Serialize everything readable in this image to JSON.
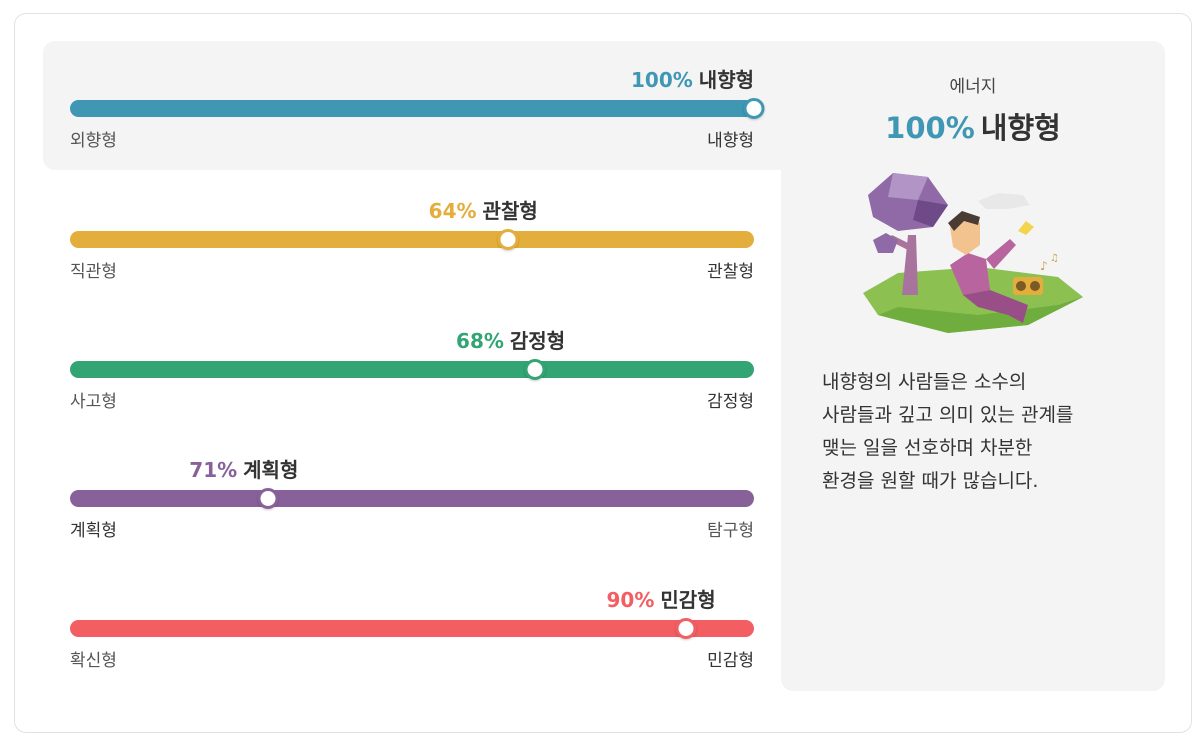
{
  "traits": [
    {
      "percent": "100%",
      "result": "내향형",
      "left": "외향형",
      "right": "내향형",
      "value": 100,
      "side": "right",
      "color": "#3f97b3"
    },
    {
      "percent": "64%",
      "result": "관찰형",
      "left": "직관형",
      "right": "관찰형",
      "value": 64,
      "side": "right",
      "color": "#e4ae3d"
    },
    {
      "percent": "68%",
      "result": "감정형",
      "left": "사고형",
      "right": "감정형",
      "value": 68,
      "side": "right",
      "color": "#33a474"
    },
    {
      "percent": "71%",
      "result": "계획형",
      "left": "계획형",
      "right": "탐구형",
      "value": 71,
      "side": "left",
      "color": "#88619a"
    },
    {
      "percent": "90%",
      "result": "민감형",
      "left": "확신형",
      "right": "민감형",
      "value": 90,
      "side": "right",
      "color": "#f25e62"
    }
  ],
  "panel": {
    "subtitle": "에너지",
    "percent": "100%",
    "result": "내향형",
    "description": [
      "내향형의 사람들은 소수의",
      "사람들과 깊고 의미 있는 관계를",
      "맺는 일을 선호하며 차분한",
      "환경을 원할 때가 많습니다."
    ],
    "illustration_icon": "man-under-tree-illustration"
  }
}
